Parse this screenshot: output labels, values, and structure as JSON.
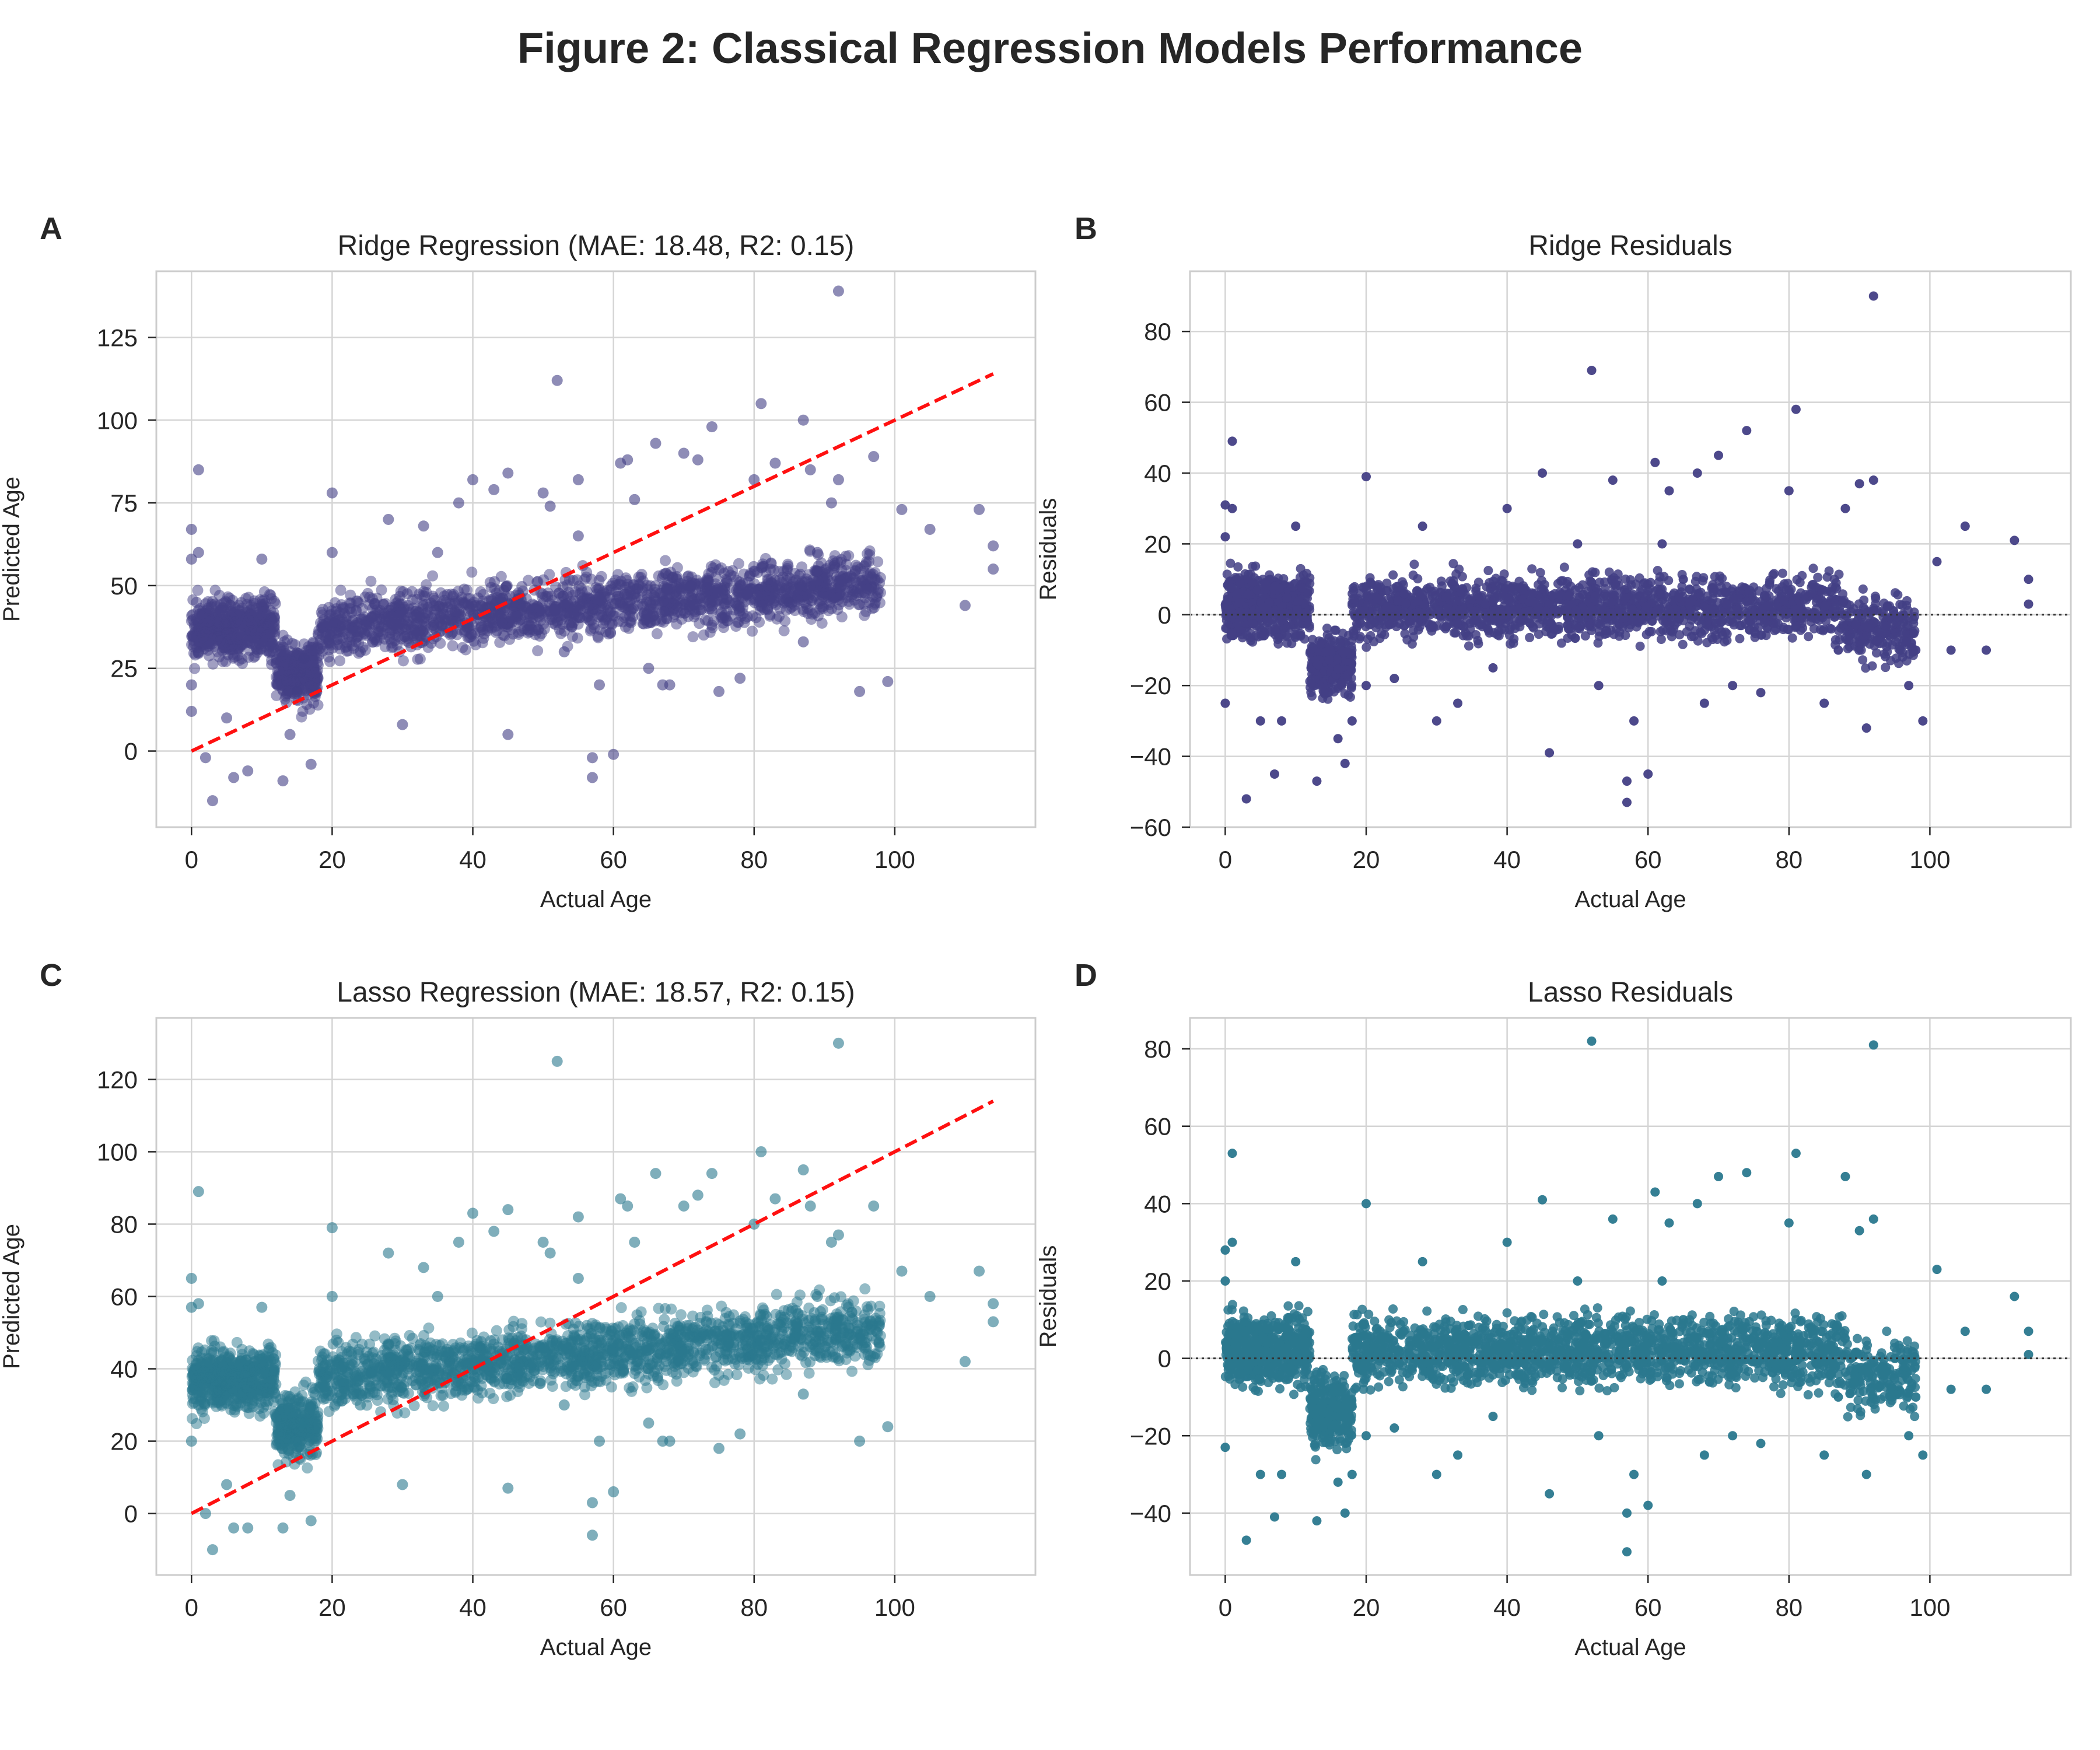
{
  "figure": {
    "title": "Figure 2: Classical Regression Models Performance"
  },
  "chart_data": [
    {
      "panel_label": "A",
      "type": "scatter",
      "title": "Ridge Regression (MAE: 18.48, R2: 0.15)",
      "xlabel": "Actual Age",
      "ylabel": "Predicted Age",
      "xlim": [
        -5,
        120
      ],
      "ylim": [
        -23,
        145
      ],
      "xticks": [
        0,
        20,
        40,
        60,
        80,
        100
      ],
      "yticks": [
        0,
        25,
        50,
        75,
        100,
        125
      ],
      "grid": true,
      "point_color": "#433f85",
      "point_opacity": 0.5,
      "reference_line": {
        "style": "dashed",
        "color": "#ff1010",
        "x": [
          0,
          114
        ],
        "y": [
          0,
          114
        ]
      },
      "series": [
        {
          "x": [
            0,
            0,
            0,
            0,
            1,
            1,
            1,
            2,
            3,
            5,
            6,
            8,
            10,
            13,
            14,
            15,
            16,
            17,
            20,
            20,
            24,
            28,
            30,
            33,
            35,
            38,
            40,
            43,
            45,
            45,
            50,
            51,
            52,
            53,
            55,
            55,
            57,
            57,
            58,
            60,
            61,
            62,
            63,
            65,
            66,
            67,
            68,
            70,
            72,
            74,
            75,
            78,
            80,
            81,
            83,
            85,
            87,
            87,
            88,
            89,
            91,
            92,
            92,
            95,
            97,
            99,
            101,
            105,
            110,
            112,
            114,
            114
          ],
          "y": [
            67,
            58,
            20,
            12,
            85,
            60,
            30,
            -2,
            -15,
            10,
            -8,
            -6,
            58,
            -9,
            5,
            18,
            28,
            -4,
            78,
            60,
            30,
            70,
            8,
            68,
            60,
            75,
            82,
            79,
            84,
            5,
            78,
            74,
            112,
            30,
            82,
            65,
            -2,
            -8,
            20,
            -1,
            87,
            88,
            76,
            25,
            93,
            20,
            20,
            90,
            88,
            98,
            18,
            22,
            82,
            105,
            87,
            45,
            33,
            100,
            85,
            60,
            75,
            139,
            82,
            18,
            89,
            21,
            73,
            67,
            44,
            73,
            62,
            55
          ]
        }
      ]
    },
    {
      "panel_label": "B",
      "type": "scatter",
      "title": "Ridge Residuals",
      "xlabel": "Actual Age",
      "ylabel": "Residuals",
      "xlim": [
        -5,
        120
      ],
      "ylim": [
        -60,
        97
      ],
      "xticks": [
        0,
        20,
        40,
        60,
        80,
        100
      ],
      "yticks": [
        -60,
        -40,
        -20,
        0,
        20,
        40,
        60,
        80
      ],
      "grid": true,
      "point_color": "#433f85",
      "point_opacity": 0.85,
      "reference_line": {
        "style": "dotted",
        "color": "#333333",
        "y": 0
      },
      "series": [
        {
          "x": [
            0,
            0,
            0,
            1,
            1,
            3,
            5,
            7,
            8,
            10,
            13,
            14,
            16,
            17,
            18,
            20,
            20,
            24,
            28,
            30,
            33,
            38,
            40,
            45,
            46,
            50,
            52,
            53,
            55,
            57,
            57,
            58,
            60,
            61,
            62,
            63,
            65,
            67,
            68,
            70,
            72,
            74,
            76,
            80,
            81,
            85,
            87,
            88,
            90,
            91,
            92,
            92,
            95,
            97,
            98,
            99,
            101,
            103,
            105,
            108,
            112,
            114,
            114
          ],
          "y": [
            31,
            22,
            -25,
            49,
            30,
            -52,
            -30,
            -45,
            -30,
            25,
            -47,
            -22,
            -35,
            -42,
            -30,
            39,
            -20,
            -18,
            25,
            -30,
            -25,
            -15,
            30,
            40,
            -39,
            20,
            69,
            -20,
            38,
            -47,
            -53,
            -30,
            -45,
            43,
            20,
            35,
            10,
            40,
            -25,
            45,
            -20,
            52,
            -22,
            35,
            58,
            -25,
            -10,
            30,
            37,
            -32,
            90,
            38,
            0,
            -20,
            -10,
            -30,
            15,
            -10,
            25,
            -10,
            21,
            10,
            3
          ]
        }
      ]
    },
    {
      "panel_label": "C",
      "type": "scatter",
      "title": "Lasso Regression (MAE: 18.57, R2: 0.15)",
      "xlabel": "Actual Age",
      "ylabel": "Predicted Age",
      "xlim": [
        -5,
        120
      ],
      "ylim": [
        -17,
        137
      ],
      "xticks": [
        0,
        20,
        40,
        60,
        80,
        100
      ],
      "yticks": [
        0,
        20,
        40,
        60,
        80,
        100,
        120
      ],
      "grid": true,
      "point_color": "#2a788e",
      "point_opacity": 0.5,
      "reference_line": {
        "style": "dashed",
        "color": "#ff1010",
        "x": [
          0,
          114
        ],
        "y": [
          0,
          114
        ]
      },
      "series": [
        {
          "x": [
            0,
            0,
            0,
            1,
            1,
            1,
            2,
            3,
            5,
            6,
            8,
            10,
            13,
            14,
            15,
            16,
            17,
            20,
            20,
            24,
            28,
            30,
            33,
            35,
            38,
            40,
            43,
            45,
            45,
            50,
            51,
            52,
            53,
            55,
            55,
            57,
            57,
            58,
            60,
            61,
            62,
            63,
            65,
            66,
            67,
            68,
            70,
            72,
            74,
            75,
            78,
            80,
            81,
            83,
            85,
            87,
            87,
            88,
            89,
            91,
            92,
            92,
            95,
            97,
            99,
            101,
            105,
            110,
            112,
            114,
            114
          ],
          "y": [
            65,
            57,
            20,
            89,
            58,
            30,
            0,
            -10,
            8,
            -4,
            -4,
            57,
            -4,
            5,
            18,
            25,
            -2,
            79,
            60,
            30,
            72,
            8,
            68,
            60,
            75,
            83,
            78,
            84,
            7,
            75,
            72,
            125,
            30,
            82,
            65,
            3,
            -6,
            20,
            6,
            87,
            85,
            75,
            25,
            94,
            20,
            20,
            85,
            88,
            94,
            18,
            22,
            80,
            100,
            87,
            45,
            33,
            95,
            85,
            60,
            75,
            130,
            77,
            20,
            85,
            24,
            67,
            60,
            42,
            67,
            58,
            53
          ]
        }
      ]
    },
    {
      "panel_label": "D",
      "type": "scatter",
      "title": "Lasso Residuals",
      "xlabel": "Actual Age",
      "ylabel": "Residuals",
      "xlim": [
        -5,
        120
      ],
      "ylim": [
        -56,
        88
      ],
      "xticks": [
        0,
        20,
        40,
        60,
        80,
        100
      ],
      "yticks": [
        -40,
        -20,
        0,
        20,
        40,
        60,
        80
      ],
      "grid": true,
      "point_color": "#2a788e",
      "point_opacity": 0.85,
      "reference_line": {
        "style": "dotted",
        "color": "#333333",
        "y": 0
      },
      "series": [
        {
          "x": [
            0,
            0,
            0,
            1,
            1,
            3,
            5,
            7,
            8,
            10,
            13,
            14,
            16,
            17,
            18,
            20,
            20,
            24,
            28,
            30,
            33,
            38,
            40,
            45,
            46,
            50,
            52,
            53,
            55,
            57,
            57,
            58,
            60,
            61,
            62,
            63,
            65,
            67,
            68,
            70,
            72,
            74,
            76,
            80,
            81,
            85,
            87,
            88,
            90,
            91,
            92,
            92,
            95,
            97,
            98,
            99,
            101,
            103,
            105,
            108,
            112,
            114,
            114
          ],
          "y": [
            28,
            20,
            -23,
            53,
            30,
            -47,
            -30,
            -41,
            -30,
            25,
            -42,
            -20,
            -32,
            -40,
            -30,
            40,
            -20,
            -18,
            25,
            -30,
            -25,
            -15,
            30,
            41,
            -35,
            20,
            82,
            -20,
            36,
            -40,
            -50,
            -30,
            -38,
            43,
            20,
            35,
            10,
            40,
            -25,
            47,
            -20,
            48,
            -22,
            35,
            53,
            -25,
            -10,
            47,
            33,
            -30,
            81,
            36,
            0,
            -20,
            -10,
            -25,
            23,
            -8,
            7,
            -8,
            16,
            7,
            1
          ]
        }
      ]
    }
  ]
}
